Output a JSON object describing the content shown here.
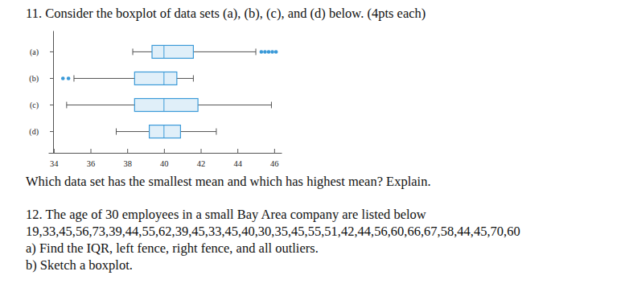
{
  "header": {
    "title": "11. Consider the boxplot of data sets (a), (b), (c), and (d) below. (4pts each)"
  },
  "chart_data": {
    "type": "boxplot",
    "orientation": "horizontal",
    "color": "#3b9ad8",
    "categories": [
      "(a)",
      "(b)",
      "(c)",
      "(d)"
    ],
    "boxes": [
      {
        "whisker_low": 38.3,
        "q1": 39.35,
        "median": 40.0,
        "q3": 41.6,
        "whisker_high": 45.0,
        "outliers": [
          45.3,
          45.5,
          45.7,
          45.9,
          46.1
        ]
      },
      {
        "whisker_low": 35.1,
        "q1": 38.4,
        "median": 40.0,
        "q3": 40.7,
        "whisker_high": 41.6,
        "outliers": [
          34.5,
          34.8
        ]
      },
      {
        "whisker_low": 34.7,
        "q1": 38.4,
        "median": 40.0,
        "q3": 41.85,
        "whisker_high": 45.85,
        "outliers": []
      },
      {
        "whisker_low": 37.4,
        "q1": 39.2,
        "median": 40.0,
        "q3": 40.9,
        "whisker_high": 42.85,
        "outliers": []
      }
    ],
    "xlim": [
      33.7,
      46.4
    ],
    "xticks": [
      34,
      36,
      38,
      40,
      42,
      44,
      46
    ]
  },
  "question": "Which data set has the smallest mean and which has highest mean? Explain.",
  "problem_12": {
    "title": "12. The age of 30 employees in a small Bay Area company are listed below",
    "data": "19,33,45,56,73,39,44,55,62,39,45,33,45,40,30,35,45,55,51,42,44,56,60,66,67,58,44,45,70,60",
    "parts": [
      "a) Find the IQR, left fence, right fence, and all outliers.",
      "b) Sketch a boxplot."
    ]
  }
}
